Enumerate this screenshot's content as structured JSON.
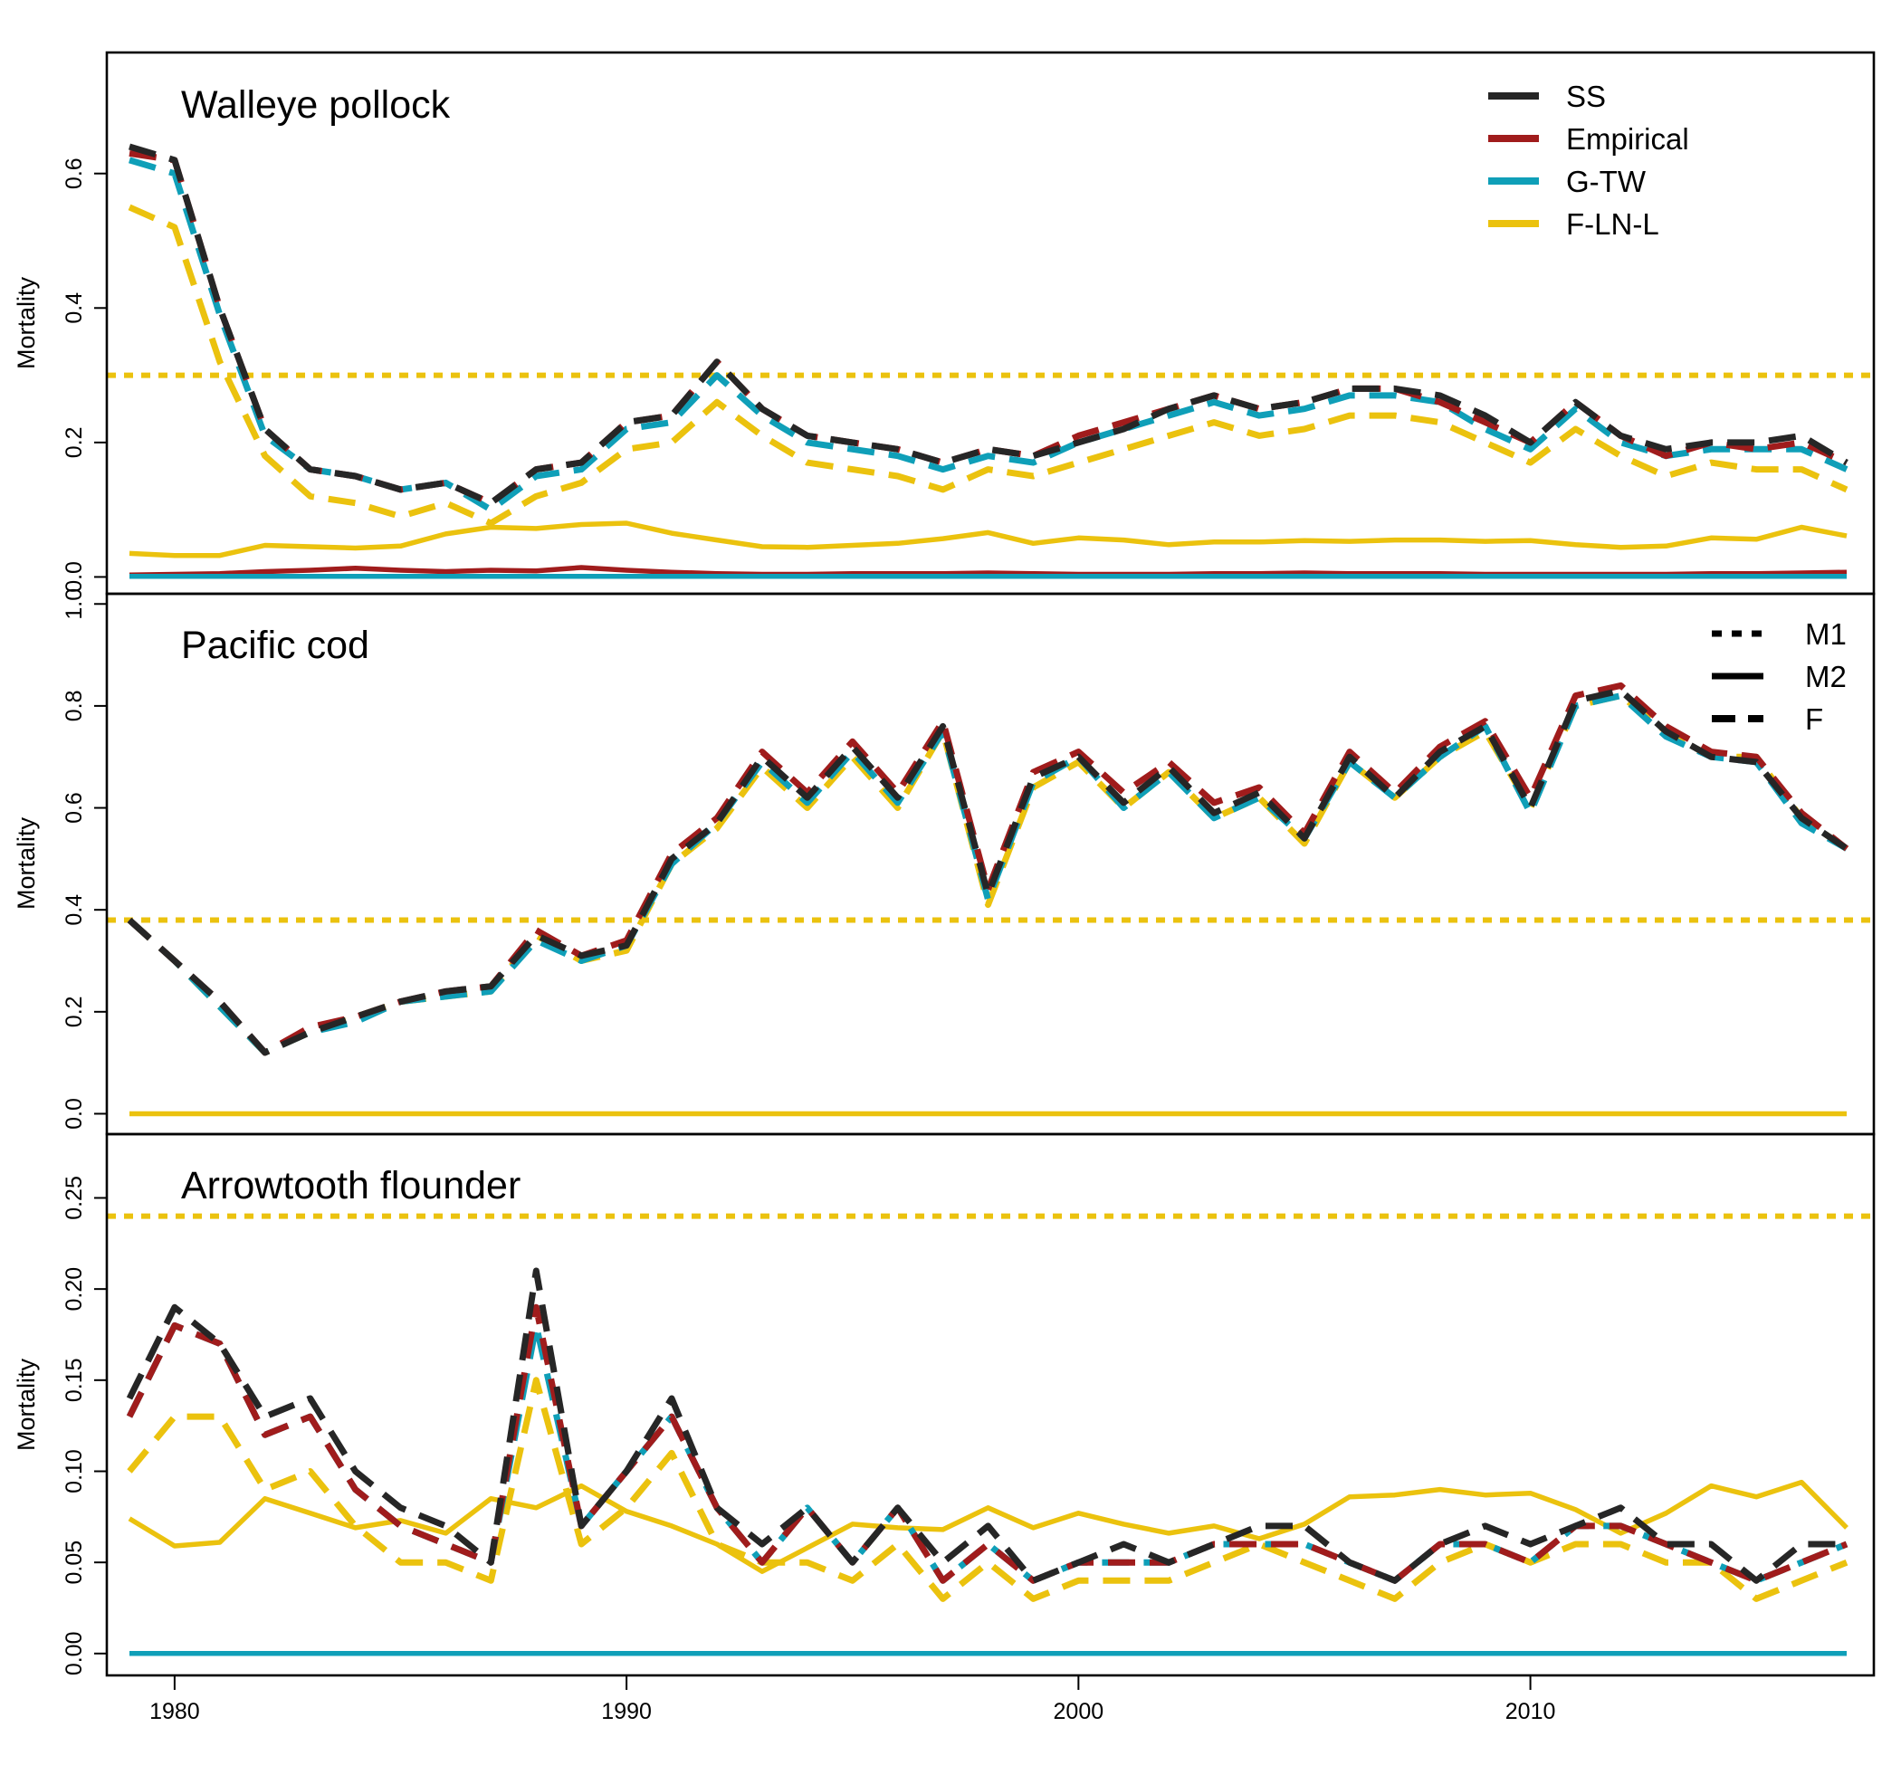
{
  "chart_data": {
    "type": "line",
    "x_axis": {
      "range": [
        1979,
        2017
      ],
      "ticks": [
        1980,
        1990,
        2000,
        2010
      ],
      "tick_labels": [
        "1980",
        "1990",
        "2000",
        "2010"
      ]
    },
    "colors": {
      "SS": "#262626",
      "Empirical": "#a01c1c",
      "G-TW": "#0f9fb8",
      "F-LN-L": "#ebc20e"
    },
    "legend_models": [
      {
        "name": "SS",
        "color": "#262626"
      },
      {
        "name": "Empirical",
        "color": "#a01c1c"
      },
      {
        "name": "G-TW",
        "color": "#0f9fb8"
      },
      {
        "name": "F-LN-L",
        "color": "#ebc20e"
      }
    ],
    "legend_components": [
      {
        "name": "M1",
        "line_style": "dotted"
      },
      {
        "name": "M2",
        "line_style": "solid"
      },
      {
        "name": "F",
        "line_style": "dashed"
      }
    ],
    "legend_placement": "top-right",
    "panels": [
      {
        "title": "Walleye pollock",
        "ylabel": "Mortality",
        "ylim": [
          -0.025,
          0.78
        ],
        "yticks": [
          0.0,
          0.2,
          0.4,
          0.6
        ],
        "ytick_labels": [
          "0.0",
          "0.2",
          "0.4",
          "0.6"
        ],
        "m1": {
          "color": "#ebc20e",
          "value": 0.3
        },
        "series": [
          {
            "model": "SS",
            "component": "F",
            "values": [
              0.64,
              0.62,
              0.4,
              0.22,
              0.16,
              0.15,
              0.13,
              0.14,
              0.11,
              0.16,
              0.17,
              0.23,
              0.24,
              0.32,
              0.25,
              0.21,
              0.2,
              0.19,
              0.17,
              0.19,
              0.18,
              0.2,
              0.22,
              0.25,
              0.27,
              0.25,
              0.26,
              0.28,
              0.28,
              0.27,
              0.24,
              0.2,
              0.26,
              0.21,
              0.19,
              0.2,
              0.2,
              0.21,
              0.17
            ]
          },
          {
            "model": "Empirical",
            "component": "F",
            "values": [
              0.63,
              0.62,
              0.4,
              0.22,
              0.16,
              0.15,
              0.13,
              0.14,
              0.11,
              0.16,
              0.17,
              0.23,
              0.24,
              0.32,
              0.25,
              0.21,
              0.2,
              0.19,
              0.17,
              0.19,
              0.18,
              0.21,
              0.23,
              0.25,
              0.27,
              0.25,
              0.26,
              0.28,
              0.28,
              0.26,
              0.23,
              0.2,
              0.26,
              0.21,
              0.18,
              0.2,
              0.19,
              0.2,
              0.17
            ]
          },
          {
            "model": "G-TW",
            "component": "F",
            "values": [
              0.62,
              0.6,
              0.39,
              0.21,
              0.16,
              0.15,
              0.13,
              0.14,
              0.1,
              0.15,
              0.16,
              0.22,
              0.23,
              0.3,
              0.24,
              0.2,
              0.19,
              0.18,
              0.16,
              0.18,
              0.17,
              0.2,
              0.22,
              0.24,
              0.26,
              0.24,
              0.25,
              0.27,
              0.27,
              0.26,
              0.22,
              0.19,
              0.25,
              0.2,
              0.18,
              0.19,
              0.19,
              0.19,
              0.16
            ]
          },
          {
            "model": "F-LN-L",
            "component": "F",
            "values": [
              0.55,
              0.52,
              0.32,
              0.18,
              0.12,
              0.11,
              0.09,
              0.11,
              0.08,
              0.12,
              0.14,
              0.19,
              0.2,
              0.26,
              0.21,
              0.17,
              0.16,
              0.15,
              0.13,
              0.16,
              0.15,
              0.17,
              0.19,
              0.21,
              0.23,
              0.21,
              0.22,
              0.24,
              0.24,
              0.23,
              0.2,
              0.17,
              0.22,
              0.18,
              0.15,
              0.17,
              0.16,
              0.16,
              0.13
            ]
          },
          {
            "model": "F-LN-L",
            "component": "M2",
            "values": [
              0.035,
              0.032,
              0.032,
              0.047,
              0.045,
              0.043,
              0.046,
              0.064,
              0.074,
              0.072,
              0.078,
              0.08,
              0.065,
              0.055,
              0.045,
              0.044,
              0.047,
              0.05,
              0.057,
              0.066,
              0.05,
              0.058,
              0.055,
              0.048,
              0.052,
              0.052,
              0.054,
              0.053,
              0.055,
              0.055,
              0.053,
              0.054,
              0.048,
              0.044,
              0.046,
              0.058,
              0.056,
              0.074,
              0.061
            ]
          },
          {
            "model": "Empirical",
            "component": "M2",
            "values": [
              0.003,
              0.004,
              0.005,
              0.008,
              0.01,
              0.013,
              0.01,
              0.008,
              0.01,
              0.009,
              0.014,
              0.01,
              0.007,
              0.005,
              0.004,
              0.004,
              0.005,
              0.005,
              0.005,
              0.006,
              0.005,
              0.004,
              0.004,
              0.004,
              0.005,
              0.005,
              0.006,
              0.005,
              0.005,
              0.005,
              0.004,
              0.004,
              0.004,
              0.004,
              0.004,
              0.005,
              0.005,
              0.006,
              0.007
            ]
          },
          {
            "model": "G-TW",
            "component": "M2",
            "values": [
              0.001,
              0.001,
              0.001,
              0.001,
              0.001,
              0.001,
              0.001,
              0.001,
              0.001,
              0.001,
              0.001,
              0.001,
              0.001,
              0.001,
              0.001,
              0.001,
              0.001,
              0.001,
              0.001,
              0.001,
              0.001,
              0.001,
              0.001,
              0.001,
              0.001,
              0.001,
              0.001,
              0.001,
              0.001,
              0.001,
              0.001,
              0.001,
              0.001,
              0.001,
              0.001,
              0.001,
              0.001,
              0.001,
              0.001
            ]
          }
        ]
      },
      {
        "title": "Pacific cod",
        "ylabel": "Mortality",
        "ylim": [
          -0.04,
          1.02
        ],
        "yticks": [
          0.0,
          0.2,
          0.4,
          0.6,
          0.8,
          1.0
        ],
        "ytick_labels": [
          "0.0",
          "0.2",
          "0.4",
          "0.6",
          "0.8",
          "1.0"
        ],
        "m1": {
          "color": "#ebc20e",
          "value": 0.38
        },
        "series": [
          {
            "model": "SS",
            "component": "F",
            "values": [
              0.38,
              0.3,
              0.22,
              0.12,
              0.16,
              0.19,
              0.22,
              0.24,
              0.25,
              0.35,
              0.31,
              0.33,
              0.5,
              0.57,
              0.7,
              0.62,
              0.72,
              0.62,
              0.76,
              0.43,
              0.66,
              0.7,
              0.61,
              0.68,
              0.59,
              0.63,
              0.54,
              0.7,
              0.62,
              0.71,
              0.76,
              0.6,
              0.81,
              0.83,
              0.75,
              0.7,
              0.69,
              0.58,
              0.52
            ]
          },
          {
            "model": "Empirical",
            "component": "F",
            "values": [
              0.38,
              0.3,
              0.22,
              0.12,
              0.17,
              0.19,
              0.22,
              0.24,
              0.25,
              0.36,
              0.31,
              0.34,
              0.51,
              0.58,
              0.71,
              0.63,
              0.73,
              0.63,
              0.77,
              0.44,
              0.67,
              0.71,
              0.63,
              0.69,
              0.61,
              0.64,
              0.55,
              0.71,
              0.63,
              0.72,
              0.77,
              0.62,
              0.82,
              0.84,
              0.76,
              0.71,
              0.7,
              0.59,
              0.52
            ]
          },
          {
            "model": "G-TW",
            "component": "F",
            "values": [
              0.38,
              0.3,
              0.21,
              0.12,
              0.16,
              0.18,
              0.22,
              0.23,
              0.24,
              0.34,
              0.3,
              0.33,
              0.49,
              0.57,
              0.69,
              0.61,
              0.71,
              0.61,
              0.75,
              0.42,
              0.65,
              0.7,
              0.6,
              0.67,
              0.58,
              0.62,
              0.54,
              0.69,
              0.62,
              0.7,
              0.76,
              0.59,
              0.8,
              0.82,
              0.74,
              0.7,
              0.69,
              0.57,
              0.52
            ]
          },
          {
            "model": "F-LN-L",
            "component": "F",
            "values": [
              0.38,
              0.3,
              0.21,
              0.12,
              0.16,
              0.19,
              0.22,
              0.23,
              0.24,
              0.35,
              0.3,
              0.32,
              0.49,
              0.56,
              0.68,
              0.6,
              0.7,
              0.6,
              0.75,
              0.41,
              0.64,
              0.69,
              0.6,
              0.67,
              0.58,
              0.62,
              0.53,
              0.69,
              0.62,
              0.7,
              0.75,
              0.6,
              0.8,
              0.82,
              0.75,
              0.7,
              0.7,
              0.58,
              0.52
            ]
          },
          {
            "model": "F-LN-L",
            "component": "M2",
            "values": [
              0,
              0,
              0,
              0,
              0,
              0,
              0,
              0,
              0,
              0,
              0,
              0,
              0,
              0,
              0,
              0,
              0,
              0,
              0,
              0,
              0,
              0,
              0,
              0,
              0,
              0,
              0,
              0,
              0,
              0,
              0,
              0,
              0,
              0,
              0,
              0,
              0,
              0,
              0
            ]
          }
        ]
      },
      {
        "title": "Arrowtooth flounder",
        "ylabel": "Mortality",
        "ylim": [
          -0.012,
          0.285
        ],
        "yticks": [
          0.0,
          0.05,
          0.1,
          0.15,
          0.2,
          0.25
        ],
        "ytick_labels": [
          "0.00",
          "0.05",
          "0.10",
          "0.15",
          "0.20",
          "0.25"
        ],
        "m1": {
          "color": "#ebc20e",
          "value": 0.24
        },
        "series": [
          {
            "model": "SS",
            "component": "F",
            "values": [
              0.14,
              0.19,
              0.17,
              0.13,
              0.14,
              0.1,
              0.08,
              0.07,
              0.05,
              0.21,
              0.07,
              0.1,
              0.14,
              0.08,
              0.06,
              0.08,
              0.05,
              0.08,
              0.05,
              0.07,
              0.04,
              0.05,
              0.06,
              0.05,
              0.06,
              0.07,
              0.07,
              0.05,
              0.04,
              0.06,
              0.07,
              0.06,
              0.07,
              0.08,
              0.06,
              0.06,
              0.04,
              0.06,
              0.06
            ]
          },
          {
            "model": "Empirical",
            "component": "F",
            "values": [
              0.13,
              0.18,
              0.17,
              0.12,
              0.13,
              0.09,
              0.07,
              0.06,
              0.05,
              0.19,
              0.07,
              0.1,
              0.13,
              0.08,
              0.05,
              0.08,
              0.05,
              0.08,
              0.04,
              0.06,
              0.04,
              0.05,
              0.05,
              0.05,
              0.06,
              0.06,
              0.06,
              0.05,
              0.04,
              0.06,
              0.06,
              0.05,
              0.07,
              0.07,
              0.06,
              0.05,
              0.04,
              0.05,
              0.06
            ]
          },
          {
            "model": "G-TW",
            "component": "F",
            "values": [
              0.13,
              0.18,
              0.17,
              0.12,
              0.13,
              0.09,
              0.07,
              0.06,
              0.05,
              0.18,
              0.07,
              0.1,
              0.13,
              0.08,
              0.05,
              0.08,
              0.05,
              0.08,
              0.04,
              0.06,
              0.04,
              0.05,
              0.05,
              0.05,
              0.06,
              0.06,
              0.06,
              0.05,
              0.04,
              0.06,
              0.06,
              0.05,
              0.07,
              0.07,
              0.06,
              0.05,
              0.04,
              0.05,
              0.06
            ]
          },
          {
            "model": "F-LN-L",
            "component": "F",
            "values": [
              0.1,
              0.13,
              0.13,
              0.09,
              0.1,
              0.07,
              0.05,
              0.05,
              0.04,
              0.15,
              0.06,
              0.08,
              0.11,
              0.06,
              0.05,
              0.05,
              0.04,
              0.06,
              0.03,
              0.05,
              0.03,
              0.04,
              0.04,
              0.04,
              0.05,
              0.06,
              0.05,
              0.04,
              0.03,
              0.05,
              0.06,
              0.05,
              0.06,
              0.06,
              0.05,
              0.05,
              0.03,
              0.04,
              0.05
            ]
          },
          {
            "model": "F-LN-L",
            "component": "M2",
            "values": [
              0.074,
              0.059,
              0.061,
              0.085,
              0.077,
              0.069,
              0.073,
              0.066,
              0.085,
              0.08,
              0.092,
              0.078,
              0.07,
              0.06,
              0.045,
              0.058,
              0.071,
              0.069,
              0.068,
              0.08,
              0.069,
              0.077,
              0.071,
              0.066,
              0.07,
              0.063,
              0.071,
              0.086,
              0.087,
              0.09,
              0.087,
              0.088,
              0.079,
              0.066,
              0.077,
              0.092,
              0.086,
              0.094,
              0.069
            ]
          },
          {
            "model": "Empirical",
            "component": "M2",
            "values": [
              0,
              0,
              0,
              0,
              0,
              0,
              0,
              0,
              0,
              0,
              0,
              0,
              0,
              0,
              0,
              0,
              0,
              0,
              0,
              0,
              0,
              0,
              0,
              0,
              0,
              0,
              0,
              0,
              0,
              0,
              0,
              0,
              0,
              0,
              0,
              0,
              0,
              0,
              0
            ]
          },
          {
            "model": "G-TW",
            "component": "M2",
            "values": [
              0,
              0,
              0,
              0,
              0,
              0,
              0,
              0,
              0,
              0,
              0,
              0,
              0,
              0,
              0,
              0,
              0,
              0,
              0,
              0,
              0,
              0,
              0,
              0,
              0,
              0,
              0,
              0,
              0,
              0,
              0,
              0,
              0,
              0,
              0,
              0,
              0,
              0,
              0
            ]
          }
        ]
      }
    ]
  }
}
